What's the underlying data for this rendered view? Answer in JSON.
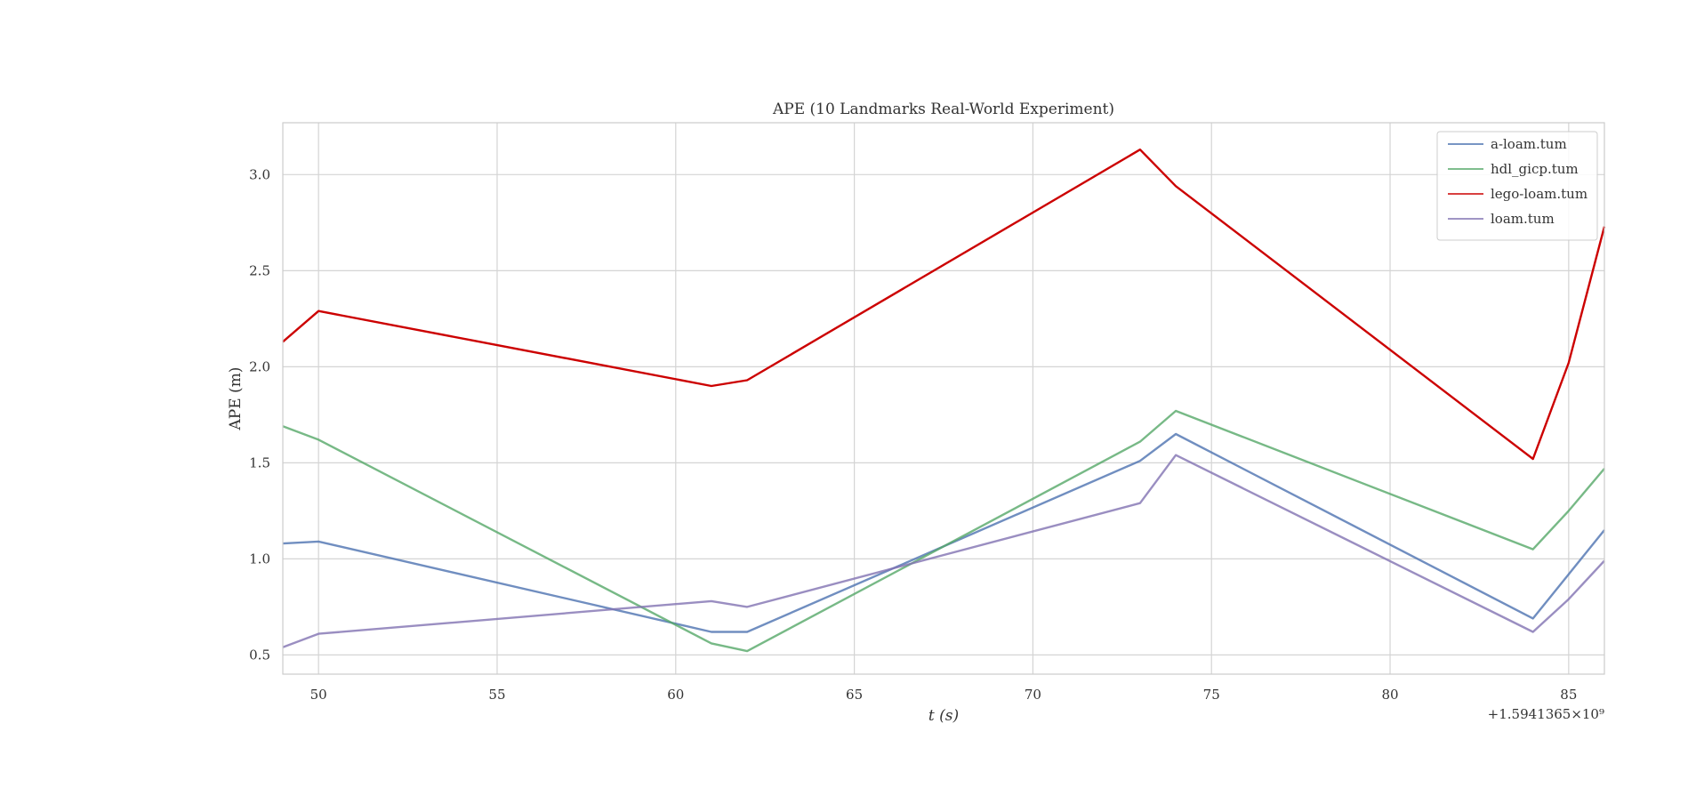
{
  "chart_data": {
    "type": "line",
    "title": "APE (10 Landmarks Real-World Experiment)",
    "xlabel": "t (s)",
    "ylabel": "APE (m)",
    "x_offset_label": "+1.5941365×10⁹",
    "xlim": [
      49,
      86
    ],
    "ylim": [
      0.4,
      3.27
    ],
    "x_ticks": [
      50,
      55,
      60,
      65,
      70,
      75,
      80,
      85
    ],
    "y_ticks": [
      0.5,
      1.0,
      1.5,
      2.0,
      2.5,
      3.0
    ],
    "grid": true,
    "legend_position": "top-right",
    "series": [
      {
        "name": "a-loam.tum",
        "color": "#4c72b0",
        "x": [
          49,
          50,
          61,
          62,
          73,
          74,
          84,
          85,
          86
        ],
        "y": [
          1.08,
          1.09,
          0.62,
          0.62,
          1.51,
          1.65,
          0.69,
          0.92,
          1.15
        ]
      },
      {
        "name": "hdl_gicp.tum",
        "color": "#55a868",
        "x": [
          49,
          50,
          61,
          62,
          73,
          74,
          84,
          85,
          86
        ],
        "y": [
          1.69,
          1.62,
          0.56,
          0.52,
          1.61,
          1.77,
          1.05,
          1.25,
          1.47
        ]
      },
      {
        "name": "lego-loam.tum",
        "color": "#cc0000",
        "x": [
          49,
          50,
          61,
          62,
          73,
          74,
          84,
          85,
          86
        ],
        "y": [
          2.13,
          2.29,
          1.9,
          1.93,
          3.13,
          2.94,
          1.52,
          2.02,
          2.73
        ]
      },
      {
        "name": "loam.tum",
        "color": "#8172b2",
        "x": [
          49,
          50,
          61,
          62,
          73,
          74,
          84,
          85,
          86
        ],
        "y": [
          0.54,
          0.61,
          0.78,
          0.75,
          1.29,
          1.54,
          0.62,
          0.79,
          0.99
        ]
      }
    ]
  }
}
